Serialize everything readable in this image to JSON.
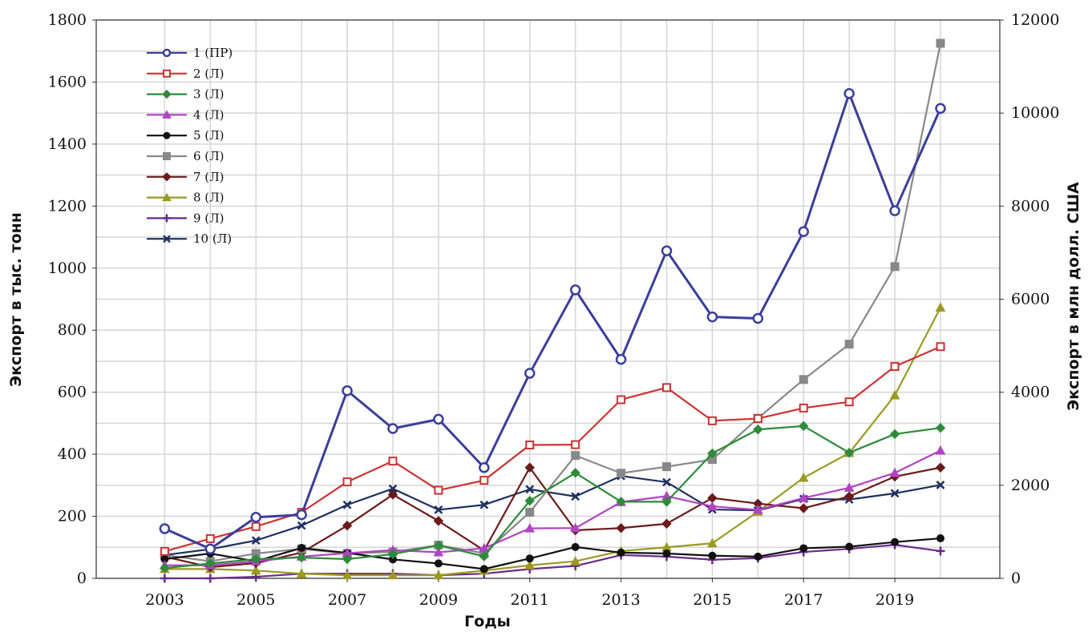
{
  "chart_data": {
    "type": "line",
    "title": "",
    "xlabel": "Годы",
    "ylabel": "Экспорт в тыс. тонн",
    "ylabel_right": "Экспорт в млн долл. США",
    "x": [
      2003,
      2004,
      2005,
      2006,
      2007,
      2008,
      2009,
      2010,
      2011,
      2012,
      2013,
      2014,
      2015,
      2016,
      2017,
      2018,
      2019,
      2020
    ],
    "x_ticks": [
      "2003",
      "2005",
      "2007",
      "2009",
      "2011",
      "2013",
      "2015",
      "2017",
      "2019"
    ],
    "xlim": [
      2001.5,
      2021.3
    ],
    "ylim": [
      0,
      1800
    ],
    "y_ticks": [
      "0",
      "200",
      "400",
      "600",
      "800",
      "1000",
      "1200",
      "1400",
      "1600",
      "1800"
    ],
    "ylim_right": [
      0,
      12000
    ],
    "y_ticks_right": [
      "0",
      "2000",
      "4000",
      "6000",
      "8000",
      "10000",
      "12000"
    ],
    "grid": true,
    "legend_position": "top-left",
    "series": [
      {
        "name": "1 (ПР)",
        "color": "#3a3f9a",
        "marker": "circle",
        "values": [
          160,
          95,
          197,
          205,
          605,
          483,
          513,
          357,
          661,
          930,
          706,
          1056,
          843,
          838,
          1118,
          1563,
          1185,
          1515
        ]
      },
      {
        "name": "2 (Л)",
        "color": "#cc3333",
        "marker": "square-open",
        "values": [
          87,
          128,
          167,
          213,
          311,
          378,
          284,
          316,
          430,
          431,
          576,
          615,
          508,
          515,
          549,
          569,
          683,
          747
        ]
      },
      {
        "name": "3 (Л)",
        "color": "#2e8b3a",
        "marker": "diamond",
        "values": [
          33,
          48,
          62,
          67,
          62,
          78,
          106,
          71,
          250,
          340,
          247,
          247,
          403,
          480,
          491,
          405,
          465,
          485
        ]
      },
      {
        "name": "4 (Л)",
        "color": "#b044c4",
        "marker": "triangle",
        "values": [
          42,
          42,
          55,
          70,
          81,
          91,
          84,
          97,
          161,
          162,
          246,
          265,
          232,
          221,
          259,
          292,
          340,
          412
        ]
      },
      {
        "name": "5 (Л)",
        "color": "#111111",
        "marker": "circle-filled",
        "values": [
          62,
          80,
          55,
          98,
          82,
          61,
          48,
          30,
          64,
          101,
          83,
          80,
          73,
          70,
          97,
          102,
          117,
          129
        ]
      },
      {
        "name": "6 (Л)",
        "color": "#888888",
        "marker": "square-filled",
        "values": [
          75,
          55,
          80,
          95,
          80,
          85,
          107,
          81,
          213,
          396,
          339,
          360,
          383,
          516,
          641,
          755,
          1005,
          1725
        ]
      },
      {
        "name": "7 (Л)",
        "color": "#6b1a1a",
        "marker": "diamond-filled",
        "values": [
          70,
          36,
          49,
          83,
          170,
          270,
          185,
          90,
          357,
          155,
          162,
          176,
          259,
          241,
          226,
          264,
          328,
          357
        ]
      },
      {
        "name": "8 (Л)",
        "color": "#9a9a22",
        "marker": "triangle-filled",
        "values": [
          30,
          30,
          25,
          15,
          10,
          10,
          10,
          25,
          42,
          55,
          88,
          100,
          113,
          215,
          324,
          404,
          590,
          873
        ]
      },
      {
        "name": "9 (Л)",
        "color": "#6a2a8a",
        "marker": "plus",
        "values": [
          0,
          0,
          5,
          15,
          15,
          15,
          10,
          15,
          30,
          40,
          75,
          70,
          60,
          65,
          85,
          95,
          108,
          88
        ]
      },
      {
        "name": "10 (Л)",
        "color": "#1f3060",
        "marker": "x",
        "values": [
          75,
          94,
          122,
          170,
          237,
          289,
          221,
          237,
          287,
          264,
          330,
          310,
          222,
          219,
          256,
          254,
          274,
          301
        ]
      }
    ]
  }
}
